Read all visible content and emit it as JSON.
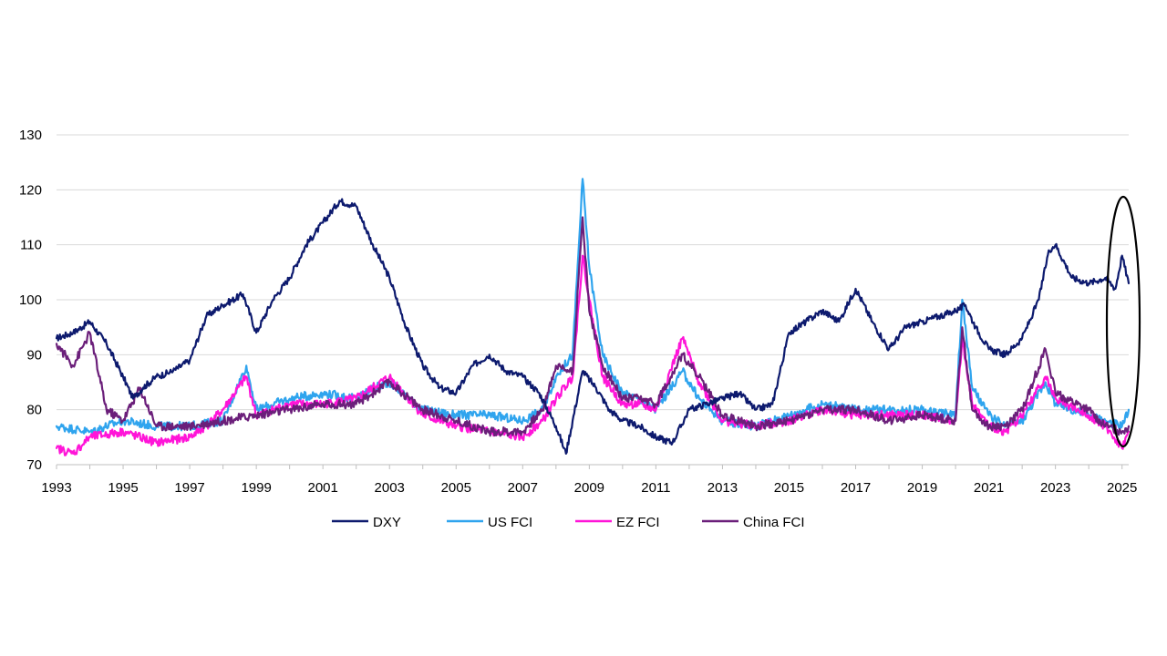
{
  "chart_data": {
    "type": "line",
    "title": "",
    "xlabel": "",
    "ylabel": "",
    "xlim": [
      1993,
      2025.2
    ],
    "ylim": [
      70,
      130
    ],
    "yticks": [
      70,
      80,
      90,
      100,
      110,
      120,
      130
    ],
    "xticks": [
      "1993",
      "1995",
      "1997",
      "1999",
      "2001",
      "2003",
      "2005",
      "2007",
      "2009",
      "2011",
      "2013",
      "2015",
      "2017",
      "2019",
      "2021",
      "2023",
      "2025"
    ],
    "grid": "horizontal",
    "legend": "bottom",
    "annotation": "ellipse-highlight-2025",
    "series": [
      {
        "name": "DXY",
        "color": "#0d1a6e",
        "x": [
          1993.0,
          1993.5,
          1994.0,
          1994.5,
          1995.0,
          1995.3,
          1995.6,
          1996.0,
          1996.5,
          1997.0,
          1997.5,
          1998.0,
          1998.6,
          1999.0,
          1999.5,
          2000.0,
          2000.5,
          2001.0,
          2001.5,
          2002.0,
          2002.5,
          2003.0,
          2003.5,
          2004.0,
          2004.5,
          2005.0,
          2005.5,
          2006.0,
          2006.5,
          2007.0,
          2007.5,
          2008.0,
          2008.3,
          2008.8,
          2009.2,
          2009.6,
          2010.0,
          2010.5,
          2011.0,
          2011.5,
          2012.0,
          2012.5,
          2013.0,
          2013.5,
          2014.0,
          2014.5,
          2015.0,
          2015.5,
          2016.0,
          2016.5,
          2017.0,
          2017.5,
          2018.0,
          2018.5,
          2019.0,
          2019.5,
          2020.0,
          2020.3,
          2020.6,
          2021.0,
          2021.5,
          2022.0,
          2022.5,
          2022.8,
          2023.0,
          2023.5,
          2024.0,
          2024.5,
          2024.8,
          2025.0,
          2025.2
        ],
        "values": [
          93,
          94,
          96,
          92,
          86,
          82,
          84,
          86,
          87,
          89,
          97,
          99,
          101,
          94,
          100,
          104,
          110,
          114,
          118,
          117,
          110,
          104,
          95,
          88,
          84,
          83,
          88,
          90,
          87,
          86,
          83,
          77,
          72,
          87,
          84,
          80,
          78,
          77,
          75,
          74,
          80,
          81,
          82,
          83,
          80,
          81,
          94,
          96,
          98,
          96,
          102,
          96,
          91,
          95,
          96,
          97,
          98,
          99,
          95,
          91,
          90,
          93,
          100,
          109,
          110,
          104,
          103,
          104,
          102,
          108,
          103
        ]
      },
      {
        "name": "US FCI",
        "color": "#2fa4ee",
        "x": [
          1993.0,
          1994.0,
          1995.0,
          1996.0,
          1997.0,
          1998.0,
          1998.7,
          1999.0,
          2000.0,
          2001.0,
          2002.0,
          2002.5,
          2003.0,
          2004.0,
          2005.0,
          2006.0,
          2007.0,
          2007.6,
          2008.0,
          2008.5,
          2008.8,
          2009.0,
          2009.4,
          2010.0,
          2010.5,
          2011.0,
          2011.8,
          2012.3,
          2013.0,
          2014.0,
          2015.0,
          2016.0,
          2017.0,
          2018.0,
          2019.0,
          2020.0,
          2020.2,
          2020.5,
          2021.0,
          2021.5,
          2022.0,
          2022.7,
          2023.0,
          2024.0,
          2024.5,
          2025.0,
          2025.2
        ],
        "values": [
          77,
          76,
          78,
          77,
          77,
          78,
          88,
          80,
          82,
          83,
          82,
          84,
          85,
          80,
          79,
          79,
          78,
          80,
          86,
          90,
          122,
          106,
          90,
          83,
          82,
          80,
          87,
          82,
          78,
          77,
          79,
          81,
          80,
          80,
          80,
          79,
          100,
          84,
          79,
          77,
          78,
          85,
          81,
          79,
          78,
          77,
          80
        ]
      },
      {
        "name": "EZ FCI",
        "color": "#ff14d8",
        "x": [
          1993.0,
          1993.5,
          1994.0,
          1995.0,
          1996.0,
          1997.0,
          1997.5,
          1998.0,
          1998.7,
          1999.0,
          2000.0,
          2001.0,
          2002.0,
          2003.0,
          2004.0,
          2005.0,
          2006.0,
          2007.0,
          2007.6,
          2008.0,
          2008.5,
          2008.8,
          2009.0,
          2009.4,
          2010.0,
          2010.5,
          2011.0,
          2011.8,
          2012.3,
          2013.0,
          2014.0,
          2015.0,
          2016.0,
          2017.0,
          2018.0,
          2019.0,
          2020.0,
          2020.2,
          2020.5,
          2021.0,
          2021.5,
          2022.0,
          2022.7,
          2023.0,
          2024.0,
          2024.5,
          2025.0,
          2025.2
        ],
        "values": [
          73,
          72,
          75,
          76,
          74,
          75,
          77,
          80,
          86,
          79,
          81,
          81,
          82,
          86,
          79,
          77,
          76,
          75,
          78,
          82,
          86,
          108,
          100,
          86,
          81,
          81,
          80,
          93,
          85,
          78,
          77,
          78,
          80,
          79,
          79,
          79,
          78,
          93,
          81,
          77,
          76,
          79,
          86,
          82,
          79,
          77,
          73,
          76
        ]
      },
      {
        "name": "China FCI",
        "color": "#6b1f7a",
        "x": [
          1993.0,
          1993.5,
          1994.0,
          1994.5,
          1995.0,
          1995.5,
          1996.0,
          1997.0,
          1998.0,
          1999.0,
          2000.0,
          2001.0,
          2002.0,
          2003.0,
          2004.0,
          2005.0,
          2006.0,
          2007.0,
          2007.6,
          2008.0,
          2008.5,
          2008.8,
          2009.0,
          2009.4,
          2010.0,
          2010.5,
          2011.0,
          2011.8,
          2012.3,
          2013.0,
          2014.0,
          2015.0,
          2016.0,
          2017.0,
          2018.0,
          2019.0,
          2020.0,
          2020.2,
          2020.5,
          2021.0,
          2021.5,
          2022.0,
          2022.7,
          2023.0,
          2024.0,
          2024.5,
          2025.0,
          2025.2
        ],
        "values": [
          92,
          88,
          94,
          80,
          78,
          84,
          77,
          77,
          78,
          79,
          80,
          81,
          81,
          85,
          80,
          78,
          76,
          76,
          80,
          88,
          87,
          115,
          98,
          88,
          82,
          82,
          81,
          90,
          86,
          79,
          77,
          78,
          80,
          80,
          78,
          79,
          78,
          95,
          80,
          77,
          77,
          80,
          91,
          83,
          80,
          77,
          76,
          77
        ]
      }
    ]
  }
}
